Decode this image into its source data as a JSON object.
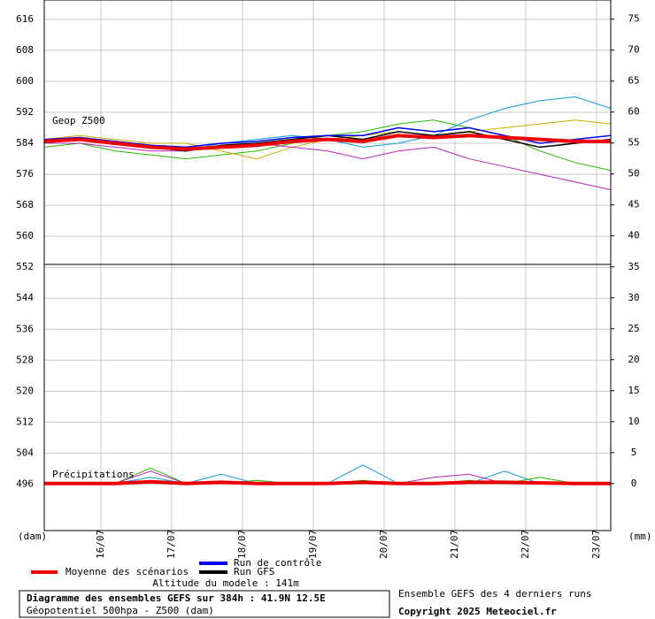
{
  "chart_data": {
    "type": "line",
    "panel_labels": [
      "Geop Z500",
      "Précipitations"
    ],
    "y_unit_left": "(dam)",
    "y_unit_right": "(mm)",
    "x": [
      0,
      0.5,
      1,
      1.5,
      2,
      2.5,
      3,
      3.5,
      4,
      4.5,
      5,
      5.5,
      6,
      6.5,
      7,
      7.5,
      8
    ],
    "xlim": [
      0,
      8
    ],
    "xticks": [
      {
        "value": 0.8,
        "label": "16/07"
      },
      {
        "value": 1.8,
        "label": "17/07"
      },
      {
        "value": 2.8,
        "label": "18/07"
      },
      {
        "value": 3.8,
        "label": "19/07"
      },
      {
        "value": 4.8,
        "label": "20/07"
      },
      {
        "value": 5.8,
        "label": "21/07"
      },
      {
        "value": 6.8,
        "label": "22/07"
      },
      {
        "value": 7.8,
        "label": "23/07"
      }
    ],
    "ylim": [
      484,
      621
    ],
    "yticks": [
      496,
      504,
      512,
      520,
      528,
      536,
      544,
      552,
      560,
      568,
      576,
      584,
      592,
      600,
      608,
      616
    ],
    "y2lim": [
      -7.6,
      78.1
    ],
    "y2ticks": [
      0,
      5,
      10,
      15,
      20,
      25,
      30,
      35,
      40,
      45,
      50,
      55,
      60,
      65,
      70,
      75
    ],
    "grid": true,
    "series": [
      {
        "name": "Moyenne des scénarios",
        "color": "#ee0000",
        "values": [
          584.5,
          585,
          584,
          583,
          582.5,
          583,
          583.5,
          584.5,
          585,
          584.5,
          586,
          585.5,
          586,
          585.5,
          585,
          584.5,
          584.5
        ]
      },
      {
        "name": "Run de contrôle",
        "color": "#0000ee",
        "values": [
          585,
          585.5,
          584.5,
          583.5,
          583,
          584,
          584.5,
          585.5,
          586,
          586,
          588,
          587,
          588,
          586,
          584,
          585,
          586
        ]
      },
      {
        "name": "Run GFS",
        "color": "#000000",
        "values": [
          584.5,
          585,
          584.5,
          583,
          582,
          583.5,
          584,
          585,
          586,
          585,
          587,
          586,
          587,
          585,
          583,
          584,
          585
        ]
      }
    ],
    "members": [
      {
        "color": "#22bb00",
        "values": [
          583,
          584,
          582,
          581,
          580,
          581,
          582,
          584,
          586,
          587,
          589,
          590,
          588,
          586,
          582,
          579,
          577
        ]
      },
      {
        "color": "#ccaa00",
        "values": [
          585,
          586,
          585,
          584,
          584,
          582,
          580,
          583,
          585,
          586,
          587,
          586,
          587,
          588,
          589,
          590,
          589
        ]
      },
      {
        "color": "#bb22bb",
        "values": [
          584,
          584,
          583,
          582,
          582,
          583,
          584,
          583,
          582,
          580,
          582,
          583,
          580,
          578,
          576,
          574,
          572
        ]
      },
      {
        "color": "#1199dd",
        "values": [
          584,
          585,
          584,
          583,
          582,
          584,
          585,
          586,
          585,
          583,
          584,
          586,
          590,
          593,
          595,
          596,
          593
        ]
      }
    ],
    "precip_members": [
      {
        "color": "#22bb00",
        "values": [
          0,
          0,
          0,
          2.5,
          0,
          0,
          0.5,
          0,
          0,
          0.5,
          0,
          0,
          0.5,
          0,
          1,
          0,
          0
        ]
      },
      {
        "color": "#1199dd",
        "values": [
          0,
          0,
          0,
          1,
          0,
          1.5,
          0,
          0,
          0,
          3,
          0,
          0,
          0,
          2,
          0,
          0,
          0
        ]
      },
      {
        "color": "#bb22bb",
        "values": [
          0,
          0,
          0,
          2,
          0,
          0,
          0,
          0,
          0,
          0,
          0,
          1,
          1.5,
          0,
          0,
          0,
          0
        ]
      }
    ],
    "precip_mean": {
      "color": "#ee0000",
      "values": [
        0,
        0,
        0,
        0.3,
        0,
        0.2,
        0,
        0,
        0,
        0.2,
        0,
        0,
        0.2,
        0.2,
        0.1,
        0,
        0
      ]
    },
    "altitude": "Altitude du modele : 141m",
    "box_title": "Diagramme des ensembles GEFS sur 384h : 41.9N 12.5E",
    "box_subtitle": "Géopotentiel 500hpa - Z500 (dam)",
    "runs_note": "Ensemble GEFS des 4 derniers runs",
    "copyright": "Copyright 2025 Meteociel.fr"
  }
}
